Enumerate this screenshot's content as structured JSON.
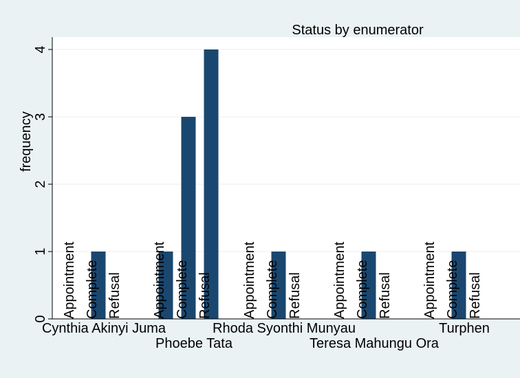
{
  "chart_data": {
    "type": "bar",
    "title": "Status by enumerator",
    "ylabel": "frequency",
    "xlabel": "",
    "ylim": [
      0,
      4
    ],
    "yticks": [
      0,
      1,
      2,
      3,
      4
    ],
    "grid": true,
    "bar_color": "#1a476f",
    "background_color": "#eaf2f3",
    "plot_background_color": "#ffffff",
    "statuses": [
      "Appointment",
      "Complete",
      "Refusal"
    ],
    "groups": [
      {
        "name": "Cynthia Akinyi Juma",
        "values": [
          0,
          1,
          0
        ]
      },
      {
        "name": "Phoebe Tata",
        "values": [
          1,
          3,
          4
        ]
      },
      {
        "name": "Rhoda Syonthi Munyau",
        "values": [
          0,
          1,
          0
        ]
      },
      {
        "name": "Teresa Mahungu Ora",
        "values": [
          0,
          1,
          0
        ]
      },
      {
        "name": "Turphen",
        "values": [
          0,
          1,
          0
        ]
      }
    ]
  }
}
